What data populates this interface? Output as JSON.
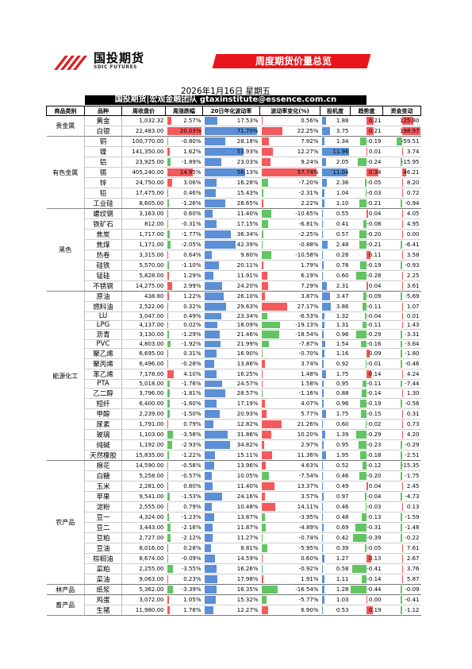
{
  "header": {
    "logo_cn": "国投期货",
    "logo_en": "SDIC FUTURES",
    "banner_title": "周度期货价量总览",
    "date": "2026年1月16日 星期五",
    "subtitle": "国投期货|宏观金融团队 gtaxinstitute@essence.com.cn"
  },
  "colors": {
    "banner": "#e8161c",
    "up": "#f4595c",
    "down": "#62c462",
    "blue": "#5b8fd6",
    "cap": "#a9c7ef"
  },
  "columns": [
    "商品类别",
    "品种",
    "周收盘价",
    "周涨跌幅",
    "20日年化波动率",
    "波动率变化(%)",
    "投机度",
    "趋势度",
    "资金变动"
  ],
  "groups": [
    {
      "cat": "贵金属",
      "rows": [
        [
          "黄金",
          "1,032.32",
          "2.57%",
          "17.53%",
          "0.56%",
          "1.88",
          "0.21",
          "125.80"
        ],
        [
          "白银",
          "22,483.00",
          "20.03%",
          "71.70%",
          "22.25%",
          "3.75",
          "0.21",
          "198.97"
        ]
      ]
    },
    {
      "cat": "有色金属",
      "rows": [
        [
          "铜",
          "100,770.00",
          "-0.80%",
          "28.18%",
          "7.92%",
          "1.34",
          "-0.19",
          "-59.51"
        ],
        [
          "镍",
          "141,350.00",
          "1.62%",
          "53.93%",
          "12.27%",
          "11.96",
          "0.01",
          "3.74"
        ],
        [
          "铝",
          "23,925.00",
          "-1.89%",
          "23.03%",
          "9.24%",
          "2.05",
          "-0.24",
          "-15.95"
        ],
        [
          "锡",
          "405,240.00",
          "14.95%",
          "56.13%",
          "57.74%",
          "11.04",
          "0.34",
          "46.21"
        ],
        [
          "锌",
          "24,750.00",
          "3.06%",
          "16.28%",
          "-7.20%",
          "2.36",
          "-0.05",
          "8.20"
        ],
        [
          "铅",
          "17,475.00",
          "0.46%",
          "15.43%",
          "-2.31%",
          "1.04",
          "-0.03",
          "0.72"
        ],
        [
          "工业硅",
          "8,605.00",
          "-1.26%",
          "28.65%",
          "2.22%",
          "1.10",
          "-0.21",
          "-0.94"
        ]
      ]
    },
    {
      "cat": "黑色",
      "rows": [
        [
          "螺纹钢",
          "3,163.00",
          "0.60%",
          "11.40%",
          "-10.65%",
          "0.55",
          "0.04",
          "4.05"
        ],
        [
          "铁矿石",
          "812.00",
          "-0.31%",
          "17.15%",
          "-6.81%",
          "0.41",
          "-0.08",
          "4.95"
        ],
        [
          "焦炭",
          "1,717.00",
          "-1.77%",
          "36.34%",
          "-2.25%",
          "0.57",
          "-0.20",
          "0.00"
        ],
        [
          "焦煤",
          "1,171.00",
          "-2.05%",
          "42.39%",
          "-0.88%",
          "2.48",
          "-0.21",
          "-6.41"
        ],
        [
          "热卷",
          "3,315.00",
          "0.64%",
          "9.80%",
          "-10.58%",
          "0.28",
          "0.11",
          "3.58"
        ],
        [
          "硅铁",
          "5,570.00",
          "-1.10%",
          "20.11%",
          "1.79%",
          "0.78",
          "-0.19",
          "-0.93"
        ],
        [
          "锰硅",
          "5,828.00",
          "1.29%",
          "11.91%",
          "6.19%",
          "0.60",
          "-0.28",
          "2.25"
        ],
        [
          "不锈钢",
          "14,275.00",
          "2.99%",
          "24.20%",
          "7.29%",
          "2.31",
          "0.04",
          "3.61"
        ]
      ]
    },
    {
      "cat": "能源化工",
      "rows": [
        [
          "原油",
          "438.80",
          "1.22%",
          "26.10%",
          "3.87%",
          "3.47",
          "-0.09",
          "-5.69"
        ],
        [
          "燃料油",
          "2,522.00",
          "0.32%",
          "29.63%",
          "27.17%",
          "3.86",
          "-0.11",
          "1.07"
        ],
        [
          "LU",
          "3,047.00",
          "0.49%",
          "23.34%",
          "-6.53%",
          "1.32",
          "-0.04",
          "0.01"
        ],
        [
          "LPG",
          "4,137.00",
          "0.02%",
          "18.09%",
          "-19.13%",
          "1.31",
          "-0.11",
          "1.43"
        ],
        [
          "沥青",
          "3,130.00",
          "-1.29%",
          "21.46%",
          "-18.54%",
          "0.96",
          "-0.29",
          "-3.31"
        ],
        [
          "PVC",
          "4,803.00",
          "-1.92%",
          "21.99%",
          "-7.87%",
          "1.54",
          "-0.16",
          "-3.64"
        ],
        [
          "聚乙烯",
          "6,695.00",
          "0.31%",
          "16.90%",
          "-0.70%",
          "1.16",
          "0.09",
          "-1.80"
        ],
        [
          "聚丙烯",
          "6,496.00",
          "-0.28%",
          "13.86%",
          "3.74%",
          "0.92",
          "-0.01",
          "-0.46"
        ],
        [
          "苯乙烯",
          "7,178.00",
          "4.10%",
          "16.25%",
          "1.48%",
          "1.75",
          "0.14",
          "4.24"
        ],
        [
          "PTA",
          "5,018.00",
          "-1.76%",
          "24.57%",
          "1.58%",
          "0.95",
          "-0.11",
          "-7.44"
        ],
        [
          "乙二醇",
          "3,796.00",
          "-1.81%",
          "28.57%",
          "-1.16%",
          "0.88",
          "-0.14",
          "1.30"
        ],
        [
          "短纤",
          "6,400.00",
          "-1.60%",
          "17.19%",
          "4.07%",
          "0.96",
          "-0.19",
          "-0.56"
        ],
        [
          "甲醇",
          "2,239.00",
          "-1.50%",
          "20.93%",
          "5.77%",
          "1.75",
          "-0.15",
          "0.31"
        ],
        [
          "尿素",
          "1,791.00",
          "0.79%",
          "12.82%",
          "21.26%",
          "0.60",
          "-0.02",
          "0.73"
        ],
        [
          "玻璃",
          "1,103.00",
          "-3.58%",
          "31.86%",
          "10.20%",
          "1.39",
          "-0.29",
          "4.20"
        ],
        [
          "纯碱",
          "1,192.00",
          "-2.93%",
          "34.82%",
          "2.97%",
          "0.95",
          "-0.23",
          "-0.29"
        ],
        [
          "天然橡胶",
          "15,835.00",
          "-1.22%",
          "15.11%",
          "11.36%",
          "1.95",
          "-0.18",
          "-2.51"
        ]
      ]
    },
    {
      "cat": "农产品",
      "rows": [
        [
          "棉花",
          "14,590.00",
          "-0.58%",
          "13.96%",
          "4.63%",
          "0.52",
          "-0.12",
          "-15.35"
        ],
        [
          "白糖",
          "5,258.00",
          "-0.57%",
          "10.05%",
          "-7.54%",
          "0.46",
          "-0.20",
          "-1.75"
        ],
        [
          "玉米",
          "2,281.00",
          "0.80%",
          "11.40%",
          "13.37%",
          "0.49",
          "0.04",
          "2.45"
        ],
        [
          "苹果",
          "9,541.00",
          "-1.53%",
          "24.16%",
          "3.57%",
          "0.97",
          "-0.04",
          "-4.73"
        ],
        [
          "淀粉",
          "2,555.00",
          "0.79%",
          "10.48%",
          "14.11%",
          "0.46",
          "-0.03",
          "0.13"
        ],
        [
          "豆一",
          "4,324.00",
          "-1.23%",
          "13.87%",
          "-3.95%",
          "0.48",
          "-0.13",
          "-1.59"
        ],
        [
          "豆二",
          "3,443.00",
          "-2.16%",
          "11.87%",
          "-4.89%",
          "0.69",
          "-0.31",
          "-1.48"
        ],
        [
          "豆粕",
          "2,727.00",
          "-2.12%",
          "11.27%",
          "-0.74%",
          "0.42",
          "-0.39",
          "-0.22"
        ],
        [
          "豆油",
          "8,016.00",
          "0.28%",
          "8.81%",
          "-5.95%",
          "0.39",
          "-0.05",
          "7.61"
        ],
        [
          "棕榈油",
          "8,674.00",
          "-0.09%",
          "14.59%",
          "0.60%",
          "1.27",
          "0.13",
          "2.67"
        ],
        [
          "菜粕",
          "2,255.00",
          "-3.55%",
          "16.26%",
          "-0.92%",
          "0.58",
          "-0.41",
          "3.76"
        ],
        [
          "菜油",
          "9,063.00",
          "0.23%",
          "17.98%",
          "1.91%",
          "1.11",
          "-0.14",
          "5.87"
        ]
      ]
    },
    {
      "cat": "林产品",
      "rows": [
        [
          "纸浆",
          "5,362.00",
          "-3.39%",
          "16.35%",
          "-16.54%",
          "1.28",
          "-0.44",
          "-0.09"
        ]
      ]
    },
    {
      "cat": "畜产品",
      "rows": [
        [
          "鸡蛋",
          "3,072.00",
          "1.05%",
          "15.32%",
          "-5.77%",
          "1.03",
          "0.00",
          "-0.41"
        ],
        [
          "生猪",
          "11,980.00",
          "1.78%",
          "12.27%",
          "6.90%",
          "0.53",
          "0.19",
          "-1.12"
        ]
      ]
    }
  ]
}
